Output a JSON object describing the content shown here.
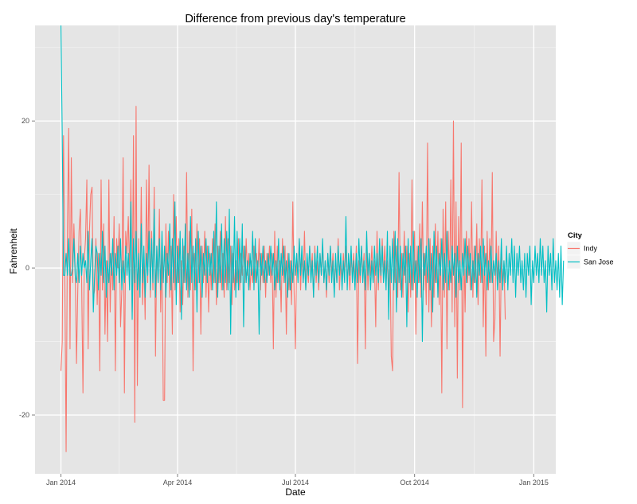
{
  "chart_data": {
    "type": "line",
    "title": "Difference from previous day's temperature",
    "xlabel": "Date",
    "ylabel": "Fahrenheit",
    "x_ticks": [
      "Jan 2014",
      "Apr 2014",
      "Jul 2014",
      "Oct 2014",
      "Jan 2015"
    ],
    "x_tick_days": [
      0,
      90,
      181,
      273,
      365
    ],
    "y_ticks": [
      -20,
      0,
      20
    ],
    "xlim": [
      "2013-12-12",
      "2015-01-18"
    ],
    "ylim": [
      -28,
      33
    ],
    "grid": true,
    "legend": {
      "title": "City",
      "position": "right"
    },
    "series": [
      {
        "name": "Indy",
        "color": "#F8766D",
        "x_start": "2014-01-01",
        "values": [
          -14,
          -10,
          18,
          -1,
          -25,
          5,
          19,
          -11,
          15,
          -2,
          6,
          0,
          -13,
          -3,
          5,
          8,
          -2,
          -17,
          1,
          4,
          12,
          -11,
          5,
          10,
          11,
          -4,
          -3,
          4,
          -5,
          2,
          -14,
          12,
          -3,
          6,
          -9,
          1,
          -10,
          12,
          -6,
          2,
          -3,
          7,
          -14,
          4,
          0,
          6,
          -8,
          -3,
          15,
          -17,
          5,
          2,
          7,
          -1,
          12,
          -6,
          18,
          -21,
          22,
          -16,
          4,
          -4,
          11,
          -5,
          2,
          -7,
          12,
          -2,
          14,
          -4,
          5,
          -3,
          11,
          -12,
          3,
          -2,
          8,
          -6,
          3,
          -18,
          -18,
          6,
          -2,
          5,
          -4,
          3,
          -9,
          10,
          -3,
          7,
          -2,
          4,
          -6,
          1,
          -5,
          3,
          -2,
          13,
          -4,
          5,
          -3,
          8,
          -14,
          2,
          -3,
          6,
          -2,
          4,
          -9,
          3,
          -2,
          5,
          -4,
          3,
          -6,
          2,
          -3,
          4,
          -2,
          6,
          -5,
          3,
          -2,
          5,
          -3,
          2,
          -4,
          7,
          -3,
          4,
          -2,
          3,
          -5,
          2,
          -3,
          1,
          -2,
          4,
          -3,
          2,
          -1,
          3,
          -2,
          4,
          -1,
          2,
          -3,
          1,
          -2,
          3,
          -2,
          2,
          -1,
          4,
          -3,
          2,
          -2,
          3,
          -4,
          2,
          -1,
          3,
          -2,
          2,
          -11,
          5,
          -4,
          3,
          -2,
          1,
          -6,
          4,
          -2,
          3,
          -9,
          2,
          -3,
          1,
          -5,
          9,
          -3,
          -11,
          2,
          -1,
          4,
          -3,
          2,
          -2,
          5,
          -3,
          1,
          -2,
          3,
          -1,
          2,
          -4,
          3,
          -2,
          1,
          -3,
          2,
          -1,
          3,
          -2,
          1,
          -4,
          2,
          -2,
          3,
          -1,
          2,
          -3,
          1,
          -2,
          4,
          -3,
          1,
          -2,
          2,
          -1,
          3,
          -2,
          1,
          -3,
          2,
          -1,
          2,
          -2,
          3,
          -13,
          1,
          -2,
          3,
          -1,
          2,
          -11,
          4,
          -3,
          2,
          -1,
          3,
          -2,
          1,
          -8,
          5,
          -3,
          2,
          -2,
          4,
          -1,
          3,
          -2,
          1,
          -3,
          2,
          -12,
          -14,
          5,
          -2,
          3,
          -4,
          13,
          -3,
          2,
          -4,
          5,
          -2,
          3,
          -6,
          2,
          -4,
          12,
          -3,
          5,
          -9,
          3,
          -2,
          6,
          -4,
          9,
          -3,
          2,
          -5,
          17,
          -6,
          4,
          -8,
          3,
          -4,
          6,
          -2,
          5,
          -5,
          4,
          -17,
          8,
          -4,
          9,
          -11,
          5,
          -3,
          12,
          -6,
          20,
          -8,
          9,
          -15,
          7,
          -3,
          17,
          -19,
          4,
          -6,
          5,
          -2,
          4,
          -3,
          9,
          -4,
          3,
          -2,
          6,
          -5,
          4,
          -2,
          12,
          -8,
          3,
          -12,
          5,
          -3,
          4,
          -2,
          13,
          -10,
          -7,
          5,
          -2,
          3,
          -12,
          2,
          -3,
          1,
          -7
        ]
      },
      {
        "name": "San Jose",
        "color": "#00BFC4",
        "x_start": "2014-01-01",
        "values": [
          33,
          18,
          -1,
          -1,
          2,
          -1,
          4,
          -1,
          -1,
          0,
          4,
          -1,
          -2,
          2,
          -2,
          3,
          -1,
          2,
          0,
          1,
          -2,
          5,
          -3,
          1,
          4,
          -6,
          -1,
          3,
          2,
          -3,
          2,
          -1,
          5,
          -2,
          3,
          -4,
          1,
          -2,
          2,
          -1,
          4,
          -3,
          2,
          -1,
          3,
          -2,
          4,
          -3,
          1,
          -2,
          3,
          -1,
          2,
          -3,
          9,
          -7,
          4,
          -2,
          5,
          -3,
          2,
          -4,
          6,
          -2,
          3,
          -4,
          2,
          -1,
          5,
          -3,
          4,
          -2,
          8,
          -4,
          3,
          -2,
          4,
          -3,
          5,
          -2,
          3,
          -4,
          2,
          -1,
          6,
          -3,
          4,
          -2,
          9,
          -5,
          3,
          -2,
          5,
          -7,
          4,
          -2,
          6,
          -3,
          2,
          -4,
          7,
          -2,
          3,
          -3,
          4,
          -6,
          5,
          -2,
          3,
          -4,
          2,
          -1,
          4,
          -2,
          3,
          -1,
          2,
          -3,
          5,
          -2,
          9,
          -4,
          3,
          -2,
          6,
          -3,
          4,
          -2,
          5,
          -3,
          8,
          -9,
          3,
          -2,
          7,
          -4,
          5,
          -3,
          4,
          -2,
          6,
          -8,
          3,
          -2,
          1,
          -3,
          2,
          -1,
          5,
          -3,
          4,
          -2,
          1,
          -9,
          2,
          -1,
          3,
          -2,
          1,
          -2,
          2,
          -1,
          3,
          -1,
          2,
          -3,
          1,
          -2,
          4,
          -3,
          2,
          -1,
          3,
          -2,
          1,
          -4,
          2,
          -3,
          1,
          -2,
          3,
          -1,
          2,
          -2,
          4,
          -1,
          3,
          -2,
          1,
          -3,
          2,
          -1,
          3,
          -2,
          1,
          -4,
          2,
          -1,
          3,
          -2,
          2,
          -1,
          4,
          -2,
          1,
          -3,
          2,
          -1,
          3,
          -2,
          1,
          -4,
          2,
          -2,
          3,
          -1,
          2,
          -3,
          1,
          -2,
          7,
          -3,
          2,
          -1,
          3,
          -2,
          1,
          -3,
          2,
          -2,
          4,
          -1,
          3,
          -2,
          1,
          -3,
          5,
          -1,
          2,
          -3,
          1,
          -2,
          3,
          -1,
          2,
          -2,
          4,
          -1,
          3,
          -2,
          1,
          -3,
          5,
          -7,
          3,
          -2,
          4,
          -3,
          5,
          -6,
          4,
          -2,
          3,
          -4,
          2,
          -1,
          3,
          -8,
          4,
          -2,
          3,
          -3,
          5,
          -2,
          1,
          -4,
          3,
          -2,
          4,
          -10,
          2,
          -1,
          3,
          -2,
          4,
          -3,
          2,
          -6,
          5,
          -2,
          3,
          -4,
          2,
          -1,
          4,
          -3,
          2,
          -2,
          5,
          -3,
          1,
          -2,
          3,
          -1,
          2,
          -4,
          3,
          -2,
          1,
          -3,
          2,
          -1,
          4,
          -2,
          3,
          -1,
          2,
          -3,
          1,
          -2,
          3,
          -4,
          2,
          -1,
          3,
          -2,
          4,
          -1,
          2,
          -3,
          1,
          -2,
          3,
          -2,
          1,
          -1,
          2,
          -3,
          1,
          -2,
          4,
          -3,
          1,
          -2,
          3,
          -3,
          2,
          -1,
          4,
          -2,
          3,
          -4,
          2,
          -1,
          3,
          -2,
          1,
          -3,
          2,
          -4,
          2,
          -1,
          3,
          -5,
          1,
          -2,
          3,
          -1,
          2,
          -2,
          4,
          -1,
          3,
          -2,
          1,
          -6,
          3,
          -1,
          2,
          -3,
          4,
          -2,
          1,
          -3,
          2,
          -4,
          3,
          -5,
          1
        ]
      }
    ]
  }
}
